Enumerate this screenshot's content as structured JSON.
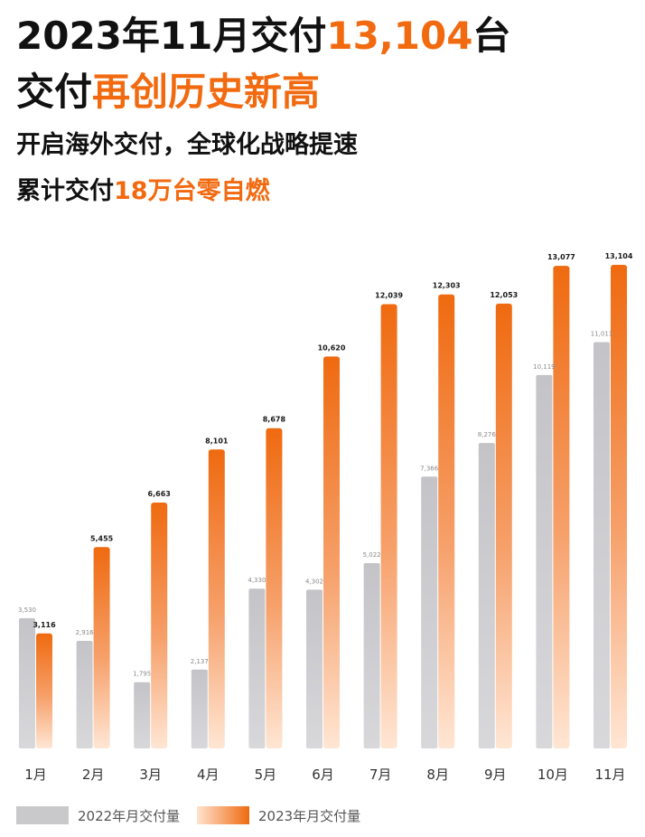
{
  "headline": {
    "line1_a": "2023年11月交付",
    "line1_b": "13,104",
    "line1_c": "台",
    "line2_a": "交付",
    "line2_b": "再创历史新高",
    "line3": "开启海外交付，全球化战略提速",
    "line4_a": "累计交付",
    "line4_b": "18万台零自燃"
  },
  "colors": {
    "accent": "#f26a10",
    "bar_2022": "#c9c9cc",
    "bar_2023_top": "#ef6a10",
    "bar_2023_bottom": "#ffe3cf"
  },
  "chart_data": {
    "type": "bar",
    "categories": [
      "1月",
      "2月",
      "3月",
      "4月",
      "5月",
      "6月",
      "7月",
      "8月",
      "9月",
      "10月",
      "11月"
    ],
    "series": [
      {
        "name": "2022年月交付量",
        "values": [
          3530,
          2916,
          1795,
          2137,
          4330,
          4302,
          5022,
          7366,
          8276,
          10119,
          11011
        ],
        "labels": [
          "3,530",
          "2,916",
          "1,795",
          "2,137",
          "4,330",
          "4,302",
          "5,022",
          "7,366",
          "8,276",
          "10,119",
          "11,011"
        ]
      },
      {
        "name": "2023年月交付量",
        "values": [
          3116,
          5455,
          6663,
          8101,
          8678,
          10620,
          12039,
          12303,
          12053,
          13077,
          13104
        ],
        "labels": [
          "3,116",
          "5,455",
          "6,663",
          "8,101",
          "8,678",
          "10,620",
          "12,039",
          "12,303",
          "12,053",
          "13,077",
          "13,104"
        ]
      }
    ],
    "ylim": [
      0,
      13104
    ],
    "legend": "bottom-left",
    "grid": false
  }
}
